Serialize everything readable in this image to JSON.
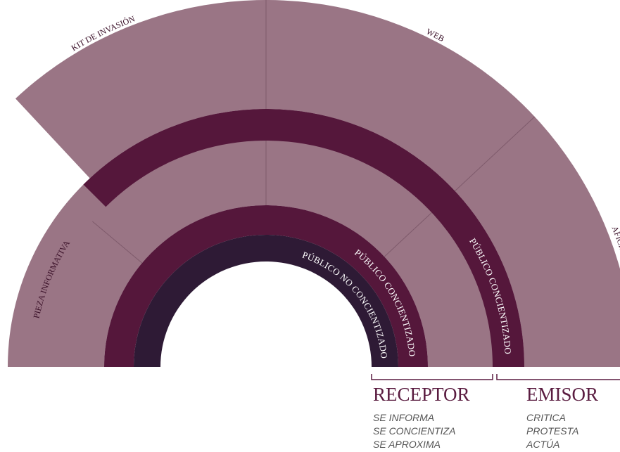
{
  "segments": {
    "kit": "KIT DE INVASIÓN",
    "web": "WEB",
    "afiches": "AFICHES",
    "pieza": "PIEZA INFORMATIVA"
  },
  "rings": {
    "outer": "PÚBLICO CONCIENTIZADO",
    "inner": "PÚBLICO CONCIENTIZADO",
    "core": "PÚBLICO NO CONCIENTIZADO"
  },
  "groups": [
    {
      "title": "RECEPTOR",
      "items": [
        "SE INFORMA",
        "SE CONCIENTIZA",
        "SE APROXIMA"
      ]
    },
    {
      "title": "EMISOR",
      "items": [
        "CRITICA",
        "PROTESTA",
        "ACTÚA"
      ]
    }
  ]
}
